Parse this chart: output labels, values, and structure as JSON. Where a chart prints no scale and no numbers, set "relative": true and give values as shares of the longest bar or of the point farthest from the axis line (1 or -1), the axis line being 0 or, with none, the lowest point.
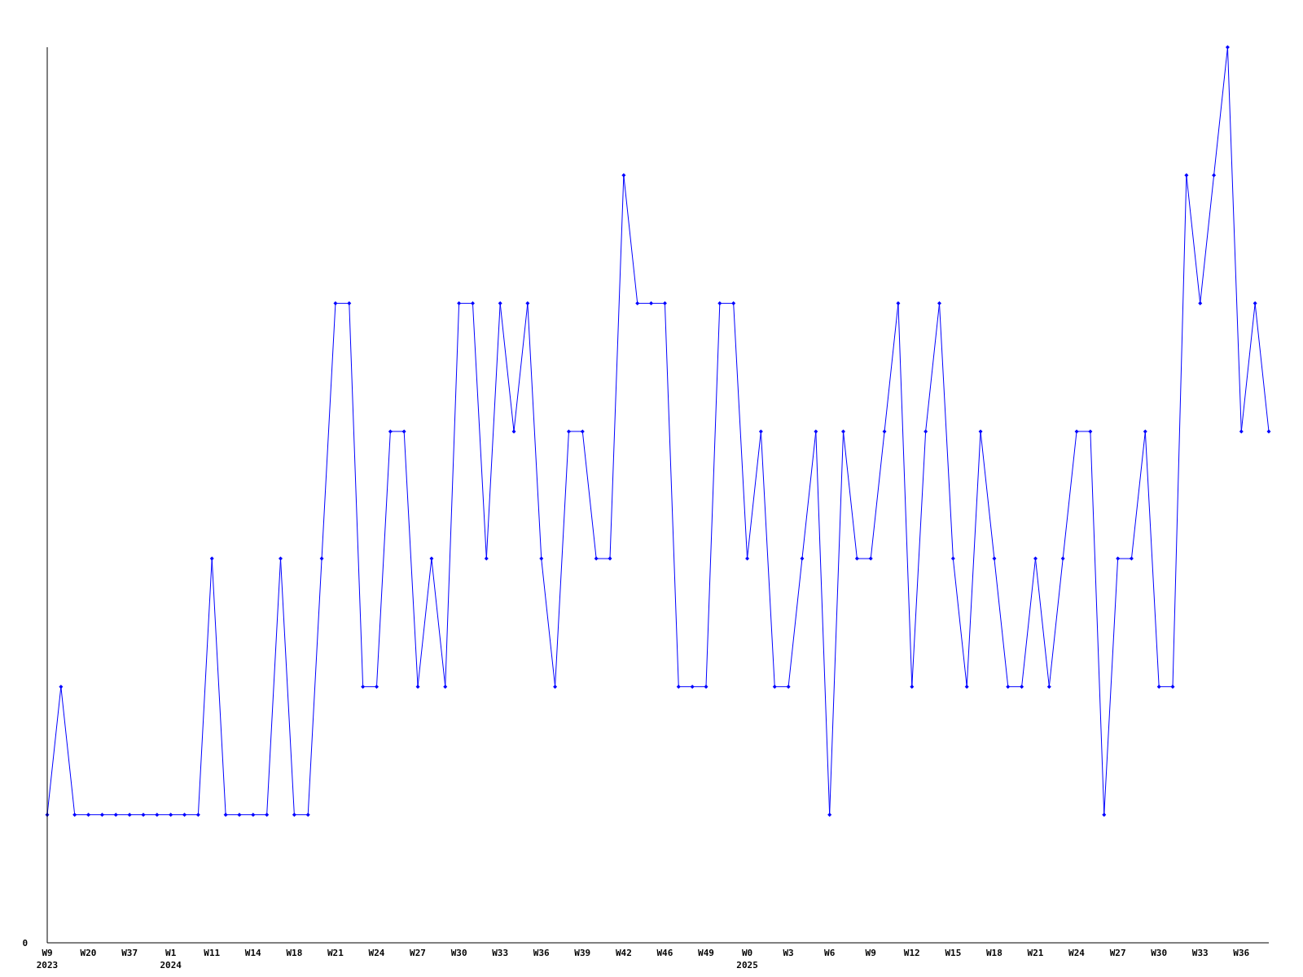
{
  "chart_data": {
    "type": "line",
    "relative": true,
    "marker": "diamond",
    "line_style": "solid",
    "categories": [
      "W9\n2023",
      null,
      null,
      "W20",
      null,
      null,
      "W37",
      null,
      null,
      "W1\n2024",
      null,
      null,
      "W11",
      null,
      null,
      "W14",
      null,
      null,
      "W18",
      null,
      null,
      "W21",
      null,
      null,
      "W24",
      null,
      null,
      "W27",
      null,
      null,
      "W30",
      null,
      null,
      "W33",
      null,
      null,
      "W36",
      null,
      null,
      "W39",
      null,
      null,
      "W42",
      null,
      null,
      "W46",
      null,
      null,
      "W49",
      null,
      null,
      "W0\n2025",
      null,
      null,
      "W3",
      null,
      null,
      "W6",
      null,
      null,
      "W9",
      null,
      null,
      "W12",
      null,
      null,
      "W15",
      null,
      null,
      "W18",
      null,
      null,
      "W21",
      null,
      null,
      "W24",
      null,
      null,
      "W27",
      null,
      null,
      "W30",
      null,
      null,
      "W33",
      null,
      null,
      "W36",
      null,
      null
    ],
    "series": [
      {
        "color": "#0000ff",
        "values": [
          0.143,
          0.286,
          0.143,
          0.143,
          0.143,
          0.143,
          0.143,
          0.143,
          0.143,
          0.143,
          0.143,
          0.143,
          0.429,
          0.143,
          0.143,
          0.143,
          0.143,
          0.429,
          0.143,
          0.143,
          0.429,
          0.714,
          0.714,
          0.286,
          0.286,
          0.571,
          0.571,
          0.286,
          0.429,
          0.286,
          0.714,
          0.714,
          0.429,
          0.714,
          0.571,
          0.714,
          0.429,
          0.286,
          0.571,
          0.571,
          0.429,
          0.429,
          0.857,
          0.714,
          0.714,
          0.714,
          0.286,
          0.286,
          0.286,
          0.714,
          0.714,
          0.429,
          0.571,
          0.286,
          0.286,
          0.429,
          0.571,
          0.143,
          0.571,
          0.429,
          0.429,
          0.571,
          0.714,
          0.286,
          0.571,
          0.714,
          0.429,
          0.286,
          0.571,
          0.429,
          0.286,
          0.286,
          0.429,
          0.286,
          0.429,
          0.571,
          0.571,
          0.143,
          0.429,
          0.429,
          0.571,
          0.286,
          0.286,
          0.857,
          0.714,
          0.857,
          1,
          0.571,
          0.714,
          0.571
        ]
      }
    ],
    "annotations": [
      "0"
    ]
  }
}
